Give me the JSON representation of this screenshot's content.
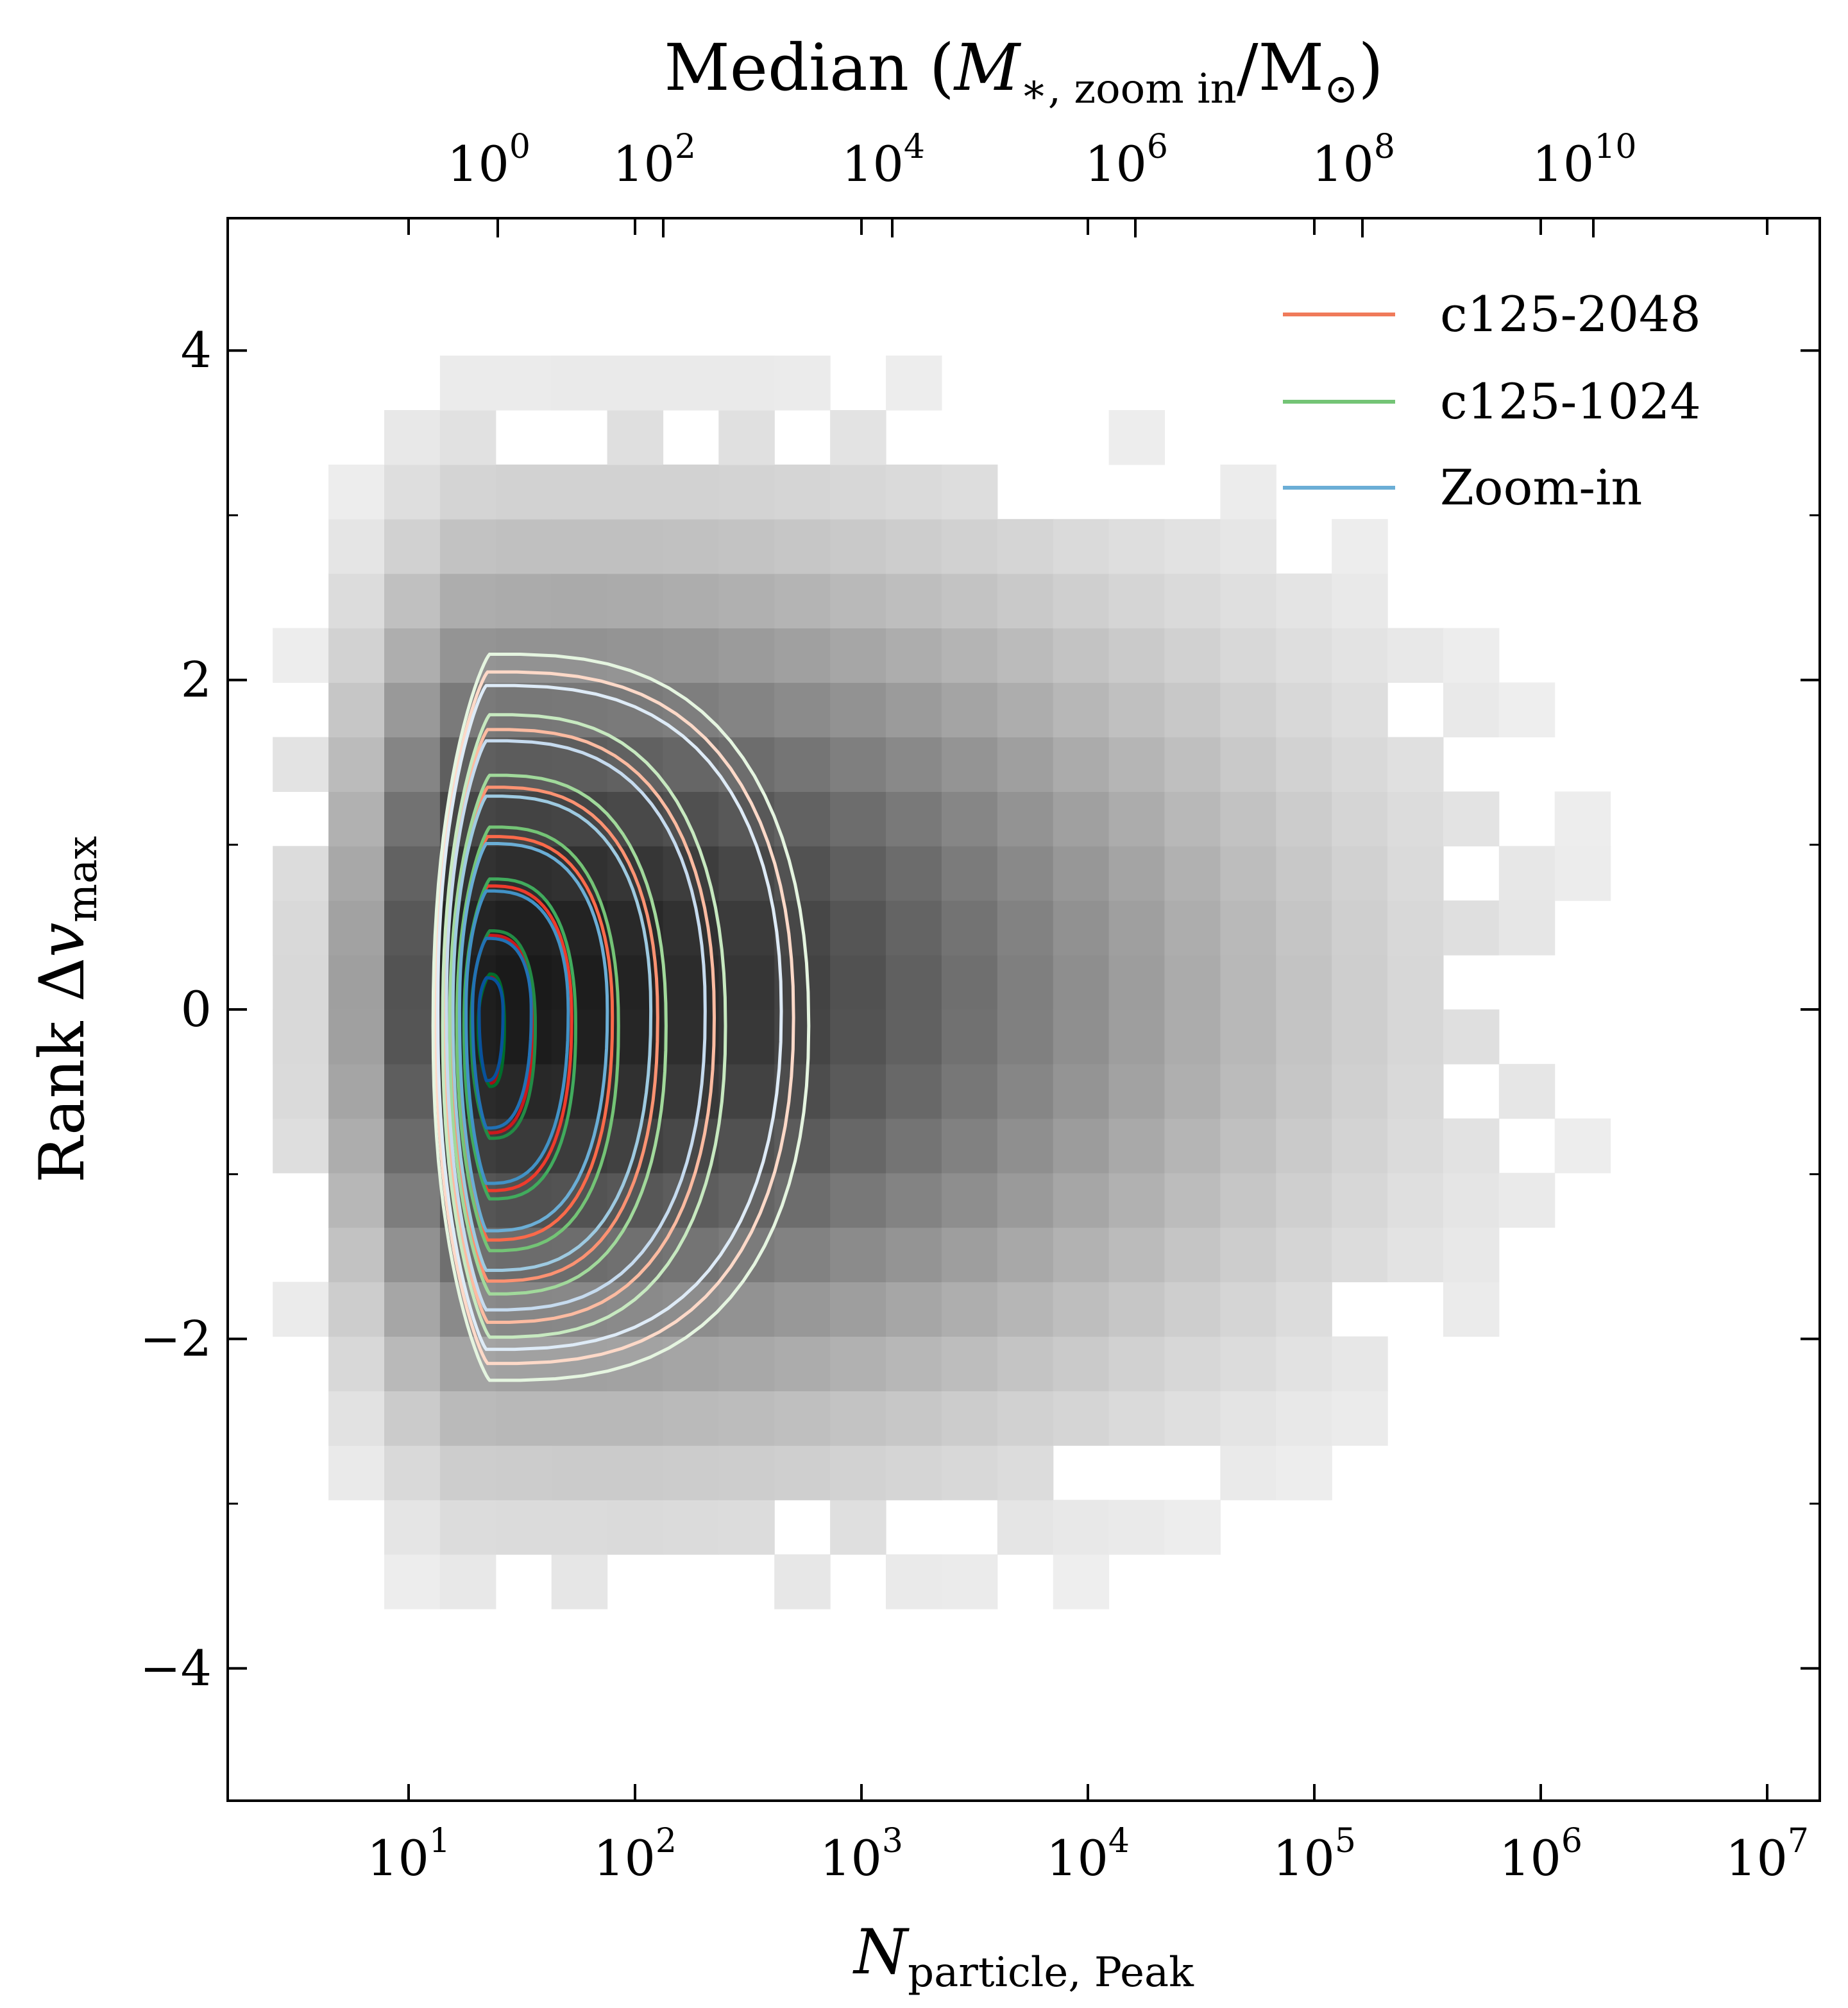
{
  "chart_data": {
    "type": "heatmap",
    "title": "",
    "bottom_axis": {
      "label_main": "N",
      "label_sub": "particle, Peak",
      "scale": "log",
      "lim": [
        10,
        10000000
      ],
      "tick_labels": [
        {
          "base": "10",
          "exp": "1"
        },
        {
          "base": "10",
          "exp": "2"
        },
        {
          "base": "10",
          "exp": "3"
        },
        {
          "base": "10",
          "exp": "4"
        },
        {
          "base": "10",
          "exp": "5"
        },
        {
          "base": "10",
          "exp": "6"
        },
        {
          "base": "10",
          "exp": "7"
        }
      ]
    },
    "top_axis": {
      "label_prefix": "Median (",
      "label_var": "M",
      "label_sub": "∗, zoom in",
      "label_suffix": "/M",
      "label_sun": "⊙",
      "label_close": ")",
      "scale": "log",
      "tick_labels": [
        {
          "base": "10",
          "exp": "0"
        },
        {
          "base": "10",
          "exp": "2"
        },
        {
          "base": "10",
          "exp": "4"
        },
        {
          "base": "10",
          "exp": "6"
        },
        {
          "base": "10",
          "exp": "8"
        },
        {
          "base": "10",
          "exp": "10"
        }
      ]
    },
    "left_axis": {
      "label_main": "Rank Δ",
      "label_var": "v",
      "label_sub": "max",
      "lim": [
        -4.8,
        4.8
      ],
      "tick_labels": [
        "4",
        "2",
        "0",
        "−2",
        "−4"
      ]
    },
    "legend": {
      "placement": "top-right",
      "entries": [
        {
          "name": "c125-2048",
          "color": "#f07a5a"
        },
        {
          "name": "c125-1024",
          "color": "#74c476"
        },
        {
          "name": "Zoom-in",
          "color": "#6baed6"
        }
      ]
    },
    "heatmap": {
      "x_log_range": [
        0.4,
        6.8
      ],
      "y_range": [
        -4.3,
        4.3
      ],
      "bins_x": 26,
      "bins_y": 26,
      "colormap": "Greys",
      "ridge_log_x": 1.35,
      "ridge_y": 0.1
    },
    "contours": {
      "center_log_x": 1.35,
      "center_y": -0.05,
      "levels": [
        {
          "level": 1,
          "left_log_x": 1.12,
          "right_log_x": 2.7,
          "y_top": 2.05,
          "y_bottom": -2.15
        },
        {
          "level": 2,
          "left_log_x": 1.16,
          "right_log_x": 2.35,
          "y_top": 1.7,
          "y_bottom": -1.9
        },
        {
          "level": 3,
          "left_log_x": 1.19,
          "right_log_x": 2.1,
          "y_top": 1.35,
          "y_bottom": -1.65
        },
        {
          "level": 4,
          "left_log_x": 1.22,
          "right_log_x": 1.9,
          "y_top": 1.05,
          "y_bottom": -1.4
        },
        {
          "level": 5,
          "left_log_x": 1.25,
          "right_log_x": 1.72,
          "y_top": 0.75,
          "y_bottom": -1.1
        },
        {
          "level": 6,
          "left_log_x": 1.28,
          "right_log_x": 1.55,
          "y_top": 0.45,
          "y_bottom": -0.75
        },
        {
          "level": 7,
          "left_log_x": 1.31,
          "right_log_x": 1.42,
          "y_top": 0.2,
          "y_bottom": -0.45
        }
      ]
    },
    "grid": false
  },
  "colors": {
    "c125-2048": "#f07a5a",
    "c125-1024": "#74c476",
    "Zoom-in": "#6baed6",
    "axes": "#000000",
    "background": "#ffffff"
  }
}
